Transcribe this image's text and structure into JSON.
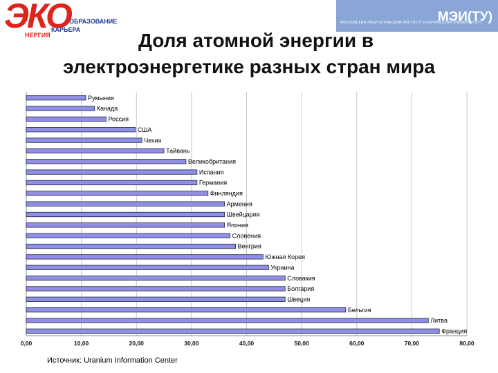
{
  "header": {
    "left_logo": {
      "mark": "ЭКО",
      "line1": "ОБРАЗОВАНИЕ",
      "line2": "КАРЬЕРА",
      "line3": "НЕРГИЯ",
      "brand_color": "#e0231b",
      "text_color": "#1a3b8f"
    },
    "right_logo": {
      "name": "МЭИ(ТУ)",
      "subtitle": "МОСКОВСКИЙ ЭНЕРГЕТИЧЕСКИЙ ИНСТИТУТ (ТЕХНИЧЕСКИЙ УНИВЕРСИТЕТ)",
      "bg_color": "#8aa6d6"
    }
  },
  "title": {
    "line1": "Доля атомной энергии в",
    "line2": "электроэнергетике разных стран мира"
  },
  "source": "Источник: Uranium Information Center",
  "chart_data": {
    "type": "bar",
    "orientation": "horizontal",
    "categories": [
      "Румыния",
      "Канада",
      "Россия",
      "США",
      "Чехия",
      "Тайвань",
      "Великобритания",
      "Испания",
      "Германия",
      "Финляндия",
      "Армения",
      "Швейцария",
      "Япония",
      "Словения",
      "Венгрия",
      "Южная Корея",
      "Украина",
      "Словакия",
      "Болгария",
      "Швеция",
      "Бельгия",
      "Литва",
      "Франция"
    ],
    "values": [
      10.8,
      12.4,
      14.5,
      19.8,
      21.0,
      25.0,
      29.0,
      31.0,
      31.0,
      33.0,
      36.0,
      36.0,
      36.0,
      37.0,
      38.0,
      43.0,
      44.0,
      47.0,
      47.0,
      47.0,
      58.0,
      73.0,
      75.0
    ],
    "xlim": [
      0,
      80
    ],
    "xticks": [
      "0,00",
      "10,00",
      "20,00",
      "30,00",
      "40,00",
      "50,00",
      "60,00",
      "70,00",
      "80,00"
    ],
    "grid": true,
    "bar_color": "#8f8fe6",
    "bar_edge_color": "#222244",
    "title": "",
    "xlabel": "",
    "ylabel": ""
  }
}
